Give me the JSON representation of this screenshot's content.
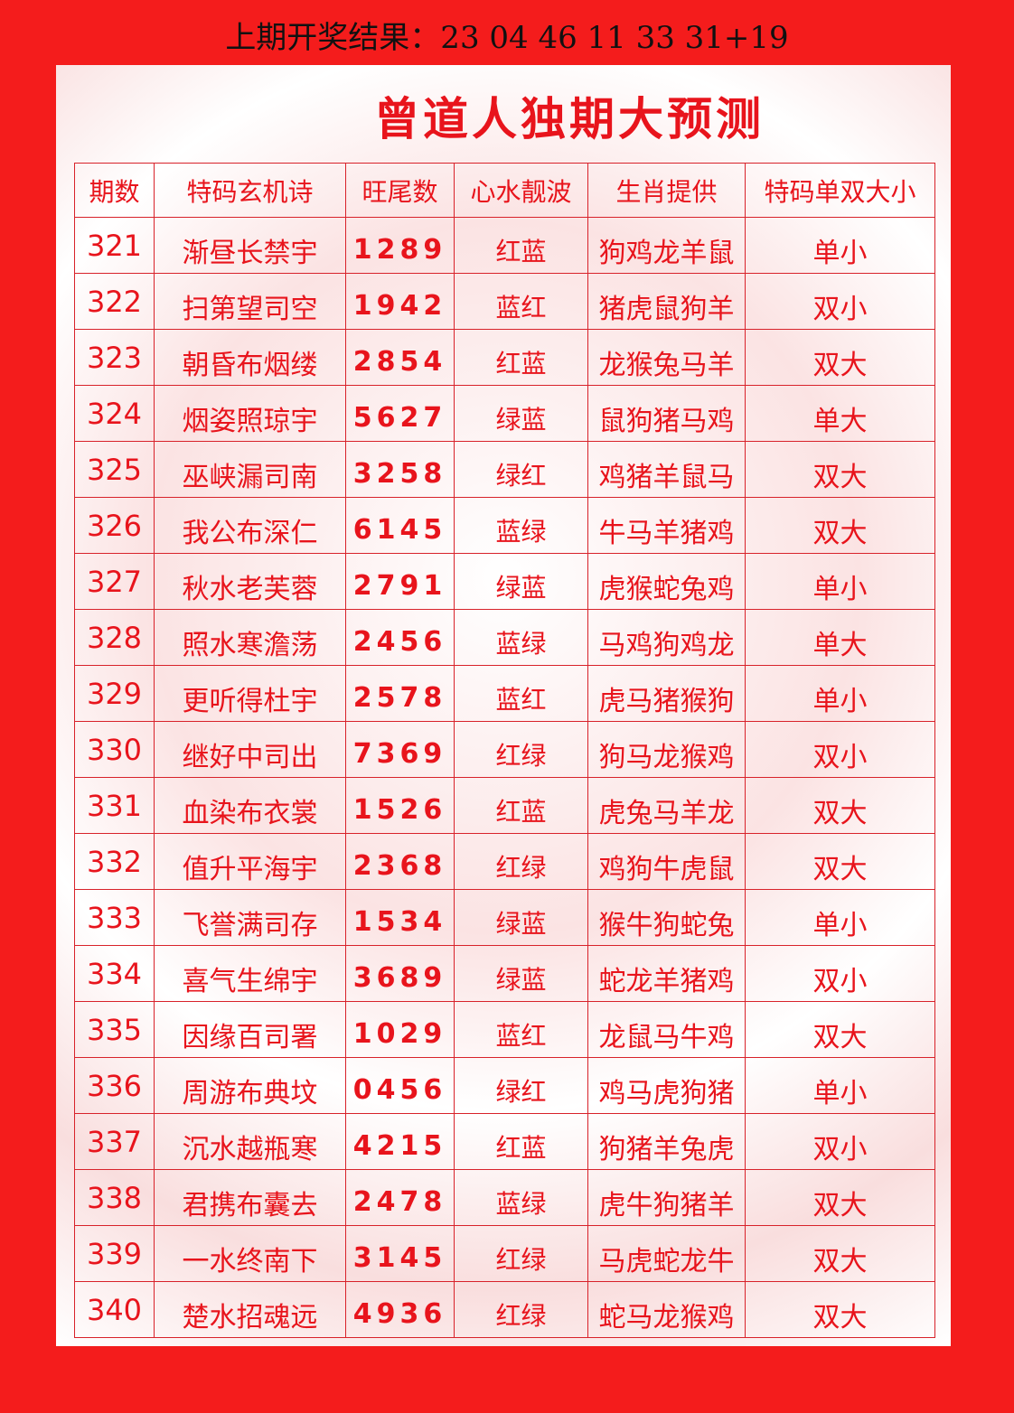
{
  "last_result": "上期开奖结果：23 04 46 11 33 31+19",
  "title": "曾道人独期大预测",
  "columns": [
    "期数",
    "特码玄机诗",
    "旺尾数",
    "心水靓波",
    "生肖提供",
    "特码单双大小"
  ],
  "rows": [
    [
      "321",
      "渐昼长禁宇",
      "1289",
      "红蓝",
      "狗鸡龙羊鼠",
      "单小"
    ],
    [
      "322",
      "扫第望司空",
      "1942",
      "蓝红",
      "猪虎鼠狗羊",
      "双小"
    ],
    [
      "323",
      "朝昏布烟缕",
      "2854",
      "红蓝",
      "龙猴兔马羊",
      "双大"
    ],
    [
      "324",
      "烟姿照琼宇",
      "5627",
      "绿蓝",
      "鼠狗猪马鸡",
      "单大"
    ],
    [
      "325",
      "巫峡漏司南",
      "3258",
      "绿红",
      "鸡猪羊鼠马",
      "双大"
    ],
    [
      "326",
      "我公布深仁",
      "6145",
      "蓝绿",
      "牛马羊猪鸡",
      "双大"
    ],
    [
      "327",
      "秋水老芙蓉",
      "2791",
      "绿蓝",
      "虎猴蛇兔鸡",
      "单小"
    ],
    [
      "328",
      "照水寒澹荡",
      "2456",
      "蓝绿",
      "马鸡狗鸡龙",
      "单大"
    ],
    [
      "329",
      "更听得杜宇",
      "2578",
      "蓝红",
      "虎马猪猴狗",
      "单小"
    ],
    [
      "330",
      "继好中司出",
      "7369",
      "红绿",
      "狗马龙猴鸡",
      "双小"
    ],
    [
      "331",
      "血染布衣裳",
      "1526",
      "红蓝",
      "虎兔马羊龙",
      "双大"
    ],
    [
      "332",
      "值升平海宇",
      "2368",
      "红绿",
      "鸡狗牛虎鼠",
      "双大"
    ],
    [
      "333",
      "飞誉满司存",
      "1534",
      "绿蓝",
      "猴牛狗蛇兔",
      "单小"
    ],
    [
      "334",
      "喜气生绵宇",
      "3689",
      "绿蓝",
      "蛇龙羊猪鸡",
      "双小"
    ],
    [
      "335",
      "因缘百司署",
      "1029",
      "蓝红",
      "龙鼠马牛鸡",
      "双大"
    ],
    [
      "336",
      "周游布典坟",
      "0456",
      "绿红",
      "鸡马虎狗猪",
      "单小"
    ],
    [
      "337",
      "沉水越瓶寒",
      "4215",
      "红蓝",
      "狗猪羊兔虎",
      "双小"
    ],
    [
      "338",
      "君携布囊去",
      "2478",
      "蓝绿",
      "虎牛狗猪羊",
      "双大"
    ],
    [
      "339",
      "一水终南下",
      "3145",
      "红绿",
      "马虎蛇龙牛",
      "双大"
    ],
    [
      "340",
      "楚水招魂远",
      "4936",
      "红绿",
      "蛇马龙猴鸡",
      "双大"
    ]
  ],
  "colors": {
    "background": "#f41c1c",
    "text": "#e8141c"
  }
}
